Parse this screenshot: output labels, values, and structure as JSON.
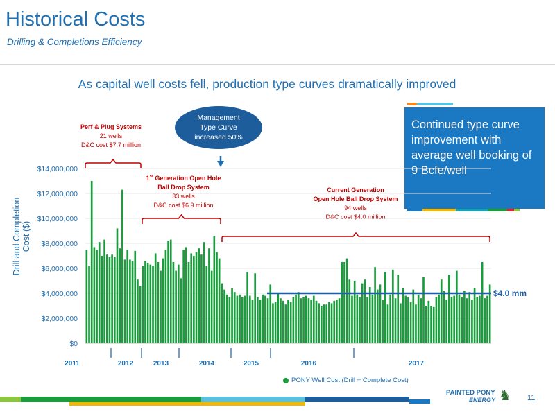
{
  "header": {
    "title": "Historical Costs",
    "subtitle": "Drilling & Completions Efficiency",
    "headline": "As capital well costs fell, production type curves dramatically improved"
  },
  "callout": {
    "text": "Continued type curve improvement with average well booking of 9 Bcfe/well"
  },
  "bubble": {
    "line1": "Management",
    "line2": "Type Curve",
    "line3": "increased 50%"
  },
  "annotations": {
    "perf": {
      "title": "Perf & Plug Systems",
      "wells": "21 wells",
      "cost": "D&C cost $7.7 million"
    },
    "gen1": {
      "sup": "st",
      "title_a": "1",
      "title_b": " Generation Open Hole",
      "title2": "Ball Drop System",
      "wells": "33 wells",
      "cost": "D&C cost $6.9 million"
    },
    "current": {
      "title": "Current Generation",
      "title2": "Open Hole Ball Drop System",
      "wells": "94 wells",
      "cost": "D&C cost $4.0 million"
    }
  },
  "footer": {
    "logo_top": "PAINTED PONY",
    "logo_bottom": "ENERGY",
    "page": "11"
  },
  "colors": {
    "bar": "#1a9b3c",
    "brand": "#1f6fb2",
    "annotation": "#c00000",
    "avg_line": "#1f5fa6",
    "callout": "#1b78c2"
  },
  "chart_data": {
    "type": "bar",
    "ylabel": "Drill and Completion Cost ($)",
    "ylim": [
      0,
      14000000
    ],
    "yticks": [
      "$0",
      "$2,000,000",
      "$4,000,000",
      "$6,000,000",
      "$8,000,000",
      "$10,000,000",
      "$12,000,000",
      "$14,000,000"
    ],
    "year_labels": [
      "2011",
      "2012",
      "2013",
      "2014",
      "2015",
      "2016",
      "2017"
    ],
    "legend": "PONY Well Cost (Drill + Complete Cost)",
    "average_label": "$4.0 mm",
    "average_value": 4000000,
    "values": [
      7500000,
      6200000,
      13000000,
      7700000,
      7500000,
      8100000,
      7000000,
      8300000,
      7100000,
      6900000,
      7100000,
      6900000,
      9200000,
      7600000,
      12300000,
      6700000,
      7500000,
      6700000,
      6600000,
      7400000,
      5100000,
      4600000,
      6200000,
      6600000,
      6400000,
      6300000,
      6200000,
      7200000,
      6500000,
      5800000,
      6800000,
      7500000,
      8200000,
      8300000,
      6500000,
      5800000,
      6300000,
      5200000,
      7500000,
      7700000,
      6500000,
      7200000,
      7000000,
      7300000,
      7600000,
      7100000,
      8100000,
      6200000,
      7600000,
      5800000,
      8600000,
      7300000,
      6800000,
      4800000,
      4300000,
      3900000,
      3700000,
      4400000,
      4100000,
      3800000,
      3900000,
      3700000,
      3800000,
      5700000,
      3800000,
      3500000,
      5600000,
      3700000,
      3500000,
      3900000,
      3800000,
      3600000,
      4700000,
      3200000,
      3300000,
      4000000,
      3600000,
      3400000,
      3100000,
      3500000,
      3300000,
      3700000,
      3900000,
      4100000,
      3600000,
      3700000,
      3800000,
      3600000,
      3500000,
      3800000,
      3400000,
      3200000,
      3000000,
      3100000,
      3100000,
      3300000,
      3200000,
      3400000,
      3500000,
      3600000,
      6500000,
      6500000,
      6800000,
      5100000,
      3800000,
      5000000,
      3900000,
      3700000,
      4800000,
      5100000,
      3700000,
      4500000,
      3900000,
      6100000,
      4300000,
      4700000,
      3500000,
      5700000,
      3100000,
      3900000,
      5900000,
      3600000,
      5500000,
      3200000,
      4400000,
      3800000,
      3700000,
      3300000,
      4300000,
      3100000,
      3900000,
      3600000,
      5300000,
      3000000,
      3400000,
      3000000,
      2900000,
      3700000,
      3900000,
      5100000,
      4200000,
      3500000,
      5500000,
      3700000,
      3800000,
      5800000,
      3900000,
      3700000,
      4200000,
      3600000,
      4100000,
      3500000,
      4400000,
      3700000,
      3800000,
      6500000,
      3600000,
      3800000,
      4700000
    ]
  }
}
